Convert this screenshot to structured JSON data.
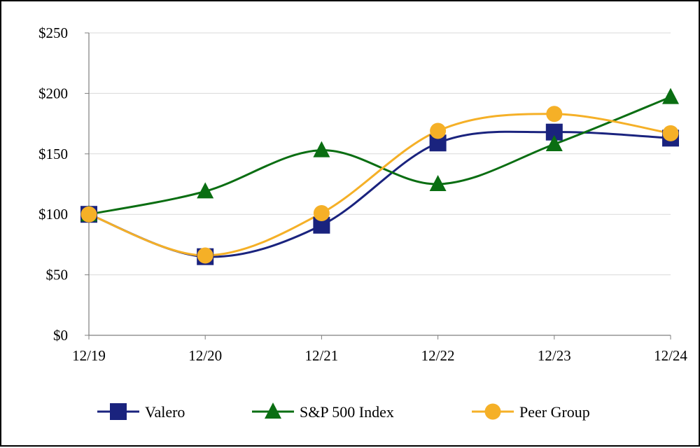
{
  "chart_data": {
    "type": "line",
    "title": "",
    "xlabel": "",
    "ylabel": "",
    "categories": [
      "12/19",
      "12/20",
      "12/21",
      "12/22",
      "12/23",
      "12/24"
    ],
    "ylim": [
      0,
      250
    ],
    "yticks": [
      0,
      50,
      100,
      150,
      200,
      250
    ],
    "ytick_labels": [
      "$0",
      "$50",
      "$100",
      "$150",
      "$200",
      "$250"
    ],
    "grid": "horizontal",
    "legend_position": "bottom",
    "series": [
      {
        "name": "Valero",
        "marker": "square",
        "color": "#1a237e",
        "values": [
          100,
          65,
          91,
          159,
          168,
          163
        ]
      },
      {
        "name": "S&P 500 Index",
        "marker": "triangle",
        "color": "#0a6e12",
        "values": [
          100,
          119,
          153,
          125,
          158,
          197
        ]
      },
      {
        "name": "Peer Group",
        "marker": "circle",
        "color": "#f5b027",
        "values": [
          100,
          66,
          101,
          169,
          183,
          167
        ]
      }
    ]
  }
}
